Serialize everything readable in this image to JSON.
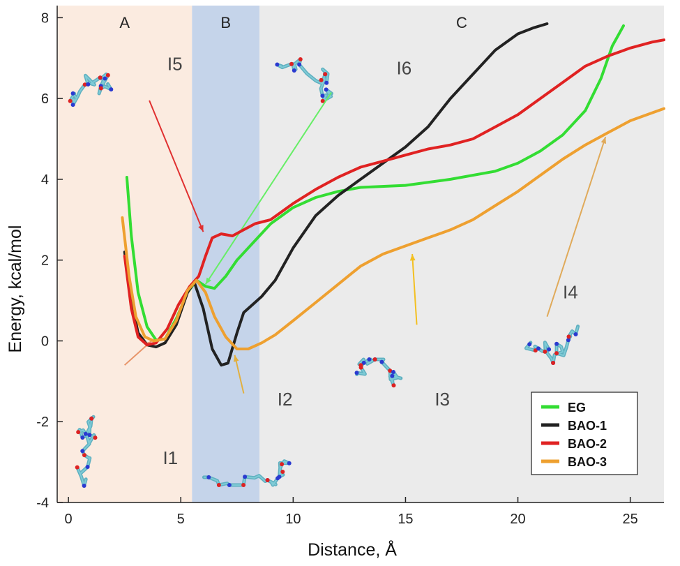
{
  "chart_data": {
    "type": "line",
    "xlabel": "Distance, Å",
    "ylabel": "Energy, kcal/mol",
    "xlim": [
      -0.5,
      26.5
    ],
    "ylim": [
      -4,
      8.3
    ],
    "xticks": [
      0,
      5,
      10,
      15,
      20,
      25
    ],
    "yticks": [
      -4,
      -2,
      0,
      2,
      4,
      6,
      8
    ],
    "regions": [
      {
        "label": "A",
        "from": -0.5,
        "to": 5.5,
        "color": "#fbebe0"
      },
      {
        "label": "B",
        "from": 5.5,
        "to": 8.5,
        "color": "#c5d4ea"
      },
      {
        "label": "C",
        "from": 8.5,
        "to": 26.5,
        "color": "#ebebeb"
      }
    ],
    "series": [
      {
        "name": "EG",
        "color": "#33dd33",
        "points": [
          [
            2.6,
            4.05
          ],
          [
            2.8,
            2.6
          ],
          [
            3.1,
            1.2
          ],
          [
            3.5,
            0.35
          ],
          [
            3.9,
            0.02
          ],
          [
            4.3,
            0.05
          ],
          [
            4.8,
            0.55
          ],
          [
            5.3,
            1.2
          ],
          [
            5.7,
            1.5
          ],
          [
            6.1,
            1.35
          ],
          [
            6.5,
            1.3
          ],
          [
            7.0,
            1.6
          ],
          [
            7.5,
            2.0
          ],
          [
            8.0,
            2.3
          ],
          [
            8.5,
            2.6
          ],
          [
            9,
            2.9
          ],
          [
            10,
            3.3
          ],
          [
            11,
            3.55
          ],
          [
            12,
            3.7
          ],
          [
            13,
            3.8
          ],
          [
            15,
            3.85
          ],
          [
            17,
            4.0
          ],
          [
            19,
            4.2
          ],
          [
            20,
            4.4
          ],
          [
            21,
            4.7
          ],
          [
            22,
            5.1
          ],
          [
            23,
            5.7
          ],
          [
            23.7,
            6.5
          ],
          [
            24.2,
            7.3
          ],
          [
            24.7,
            7.8
          ]
        ]
      },
      {
        "name": "BAO-1",
        "color": "#222222",
        "points": [
          [
            2.5,
            2.2
          ],
          [
            2.8,
            1.0
          ],
          [
            3.1,
            0.2
          ],
          [
            3.5,
            -0.1
          ],
          [
            3.9,
            -0.15
          ],
          [
            4.3,
            -0.05
          ],
          [
            4.8,
            0.4
          ],
          [
            5.3,
            1.2
          ],
          [
            5.6,
            1.45
          ],
          [
            6.0,
            0.8
          ],
          [
            6.4,
            -0.2
          ],
          [
            6.8,
            -0.6
          ],
          [
            7.1,
            -0.55
          ],
          [
            7.5,
            0.2
          ],
          [
            7.8,
            0.7
          ],
          [
            8.2,
            0.9
          ],
          [
            8.6,
            1.1
          ],
          [
            9.2,
            1.5
          ],
          [
            10,
            2.3
          ],
          [
            11,
            3.1
          ],
          [
            12,
            3.6
          ],
          [
            13,
            4.0
          ],
          [
            14,
            4.4
          ],
          [
            15,
            4.8
          ],
          [
            16,
            5.3
          ],
          [
            17,
            6.0
          ],
          [
            18,
            6.6
          ],
          [
            19,
            7.2
          ],
          [
            20,
            7.6
          ],
          [
            20.7,
            7.75
          ],
          [
            21.3,
            7.85
          ]
        ]
      },
      {
        "name": "BAO-2",
        "color": "#e02222",
        "points": [
          [
            2.5,
            2.1
          ],
          [
            2.8,
            0.8
          ],
          [
            3.1,
            0.1
          ],
          [
            3.5,
            -0.1
          ],
          [
            3.9,
            -0.05
          ],
          [
            4.4,
            0.3
          ],
          [
            4.9,
            0.9
          ],
          [
            5.4,
            1.35
          ],
          [
            5.8,
            1.6
          ],
          [
            6.1,
            2.1
          ],
          [
            6.4,
            2.55
          ],
          [
            6.8,
            2.65
          ],
          [
            7.3,
            2.6
          ],
          [
            7.8,
            2.75
          ],
          [
            8.3,
            2.9
          ],
          [
            9,
            3.0
          ],
          [
            10,
            3.4
          ],
          [
            11,
            3.75
          ],
          [
            12,
            4.05
          ],
          [
            13,
            4.3
          ],
          [
            14,
            4.45
          ],
          [
            15,
            4.6
          ],
          [
            16,
            4.75
          ],
          [
            17,
            4.85
          ],
          [
            18,
            5.0
          ],
          [
            19,
            5.3
          ],
          [
            20,
            5.6
          ],
          [
            21,
            6.0
          ],
          [
            22,
            6.4
          ],
          [
            23,
            6.8
          ],
          [
            24,
            7.05
          ],
          [
            25,
            7.25
          ],
          [
            26,
            7.4
          ],
          [
            26.5,
            7.45
          ]
        ]
      },
      {
        "name": "BAO-3",
        "color": "#eea030",
        "points": [
          [
            2.4,
            3.05
          ],
          [
            2.7,
            1.6
          ],
          [
            3.0,
            0.6
          ],
          [
            3.4,
            0.1
          ],
          [
            3.8,
            0.0
          ],
          [
            4.3,
            0.05
          ],
          [
            4.8,
            0.5
          ],
          [
            5.3,
            1.25
          ],
          [
            5.7,
            1.5
          ],
          [
            6.1,
            1.2
          ],
          [
            6.5,
            0.6
          ],
          [
            7.0,
            0.1
          ],
          [
            7.5,
            -0.2
          ],
          [
            8.0,
            -0.2
          ],
          [
            8.6,
            -0.05
          ],
          [
            9.2,
            0.15
          ],
          [
            10,
            0.5
          ],
          [
            11,
            0.95
          ],
          [
            12,
            1.4
          ],
          [
            13,
            1.85
          ],
          [
            14,
            2.15
          ],
          [
            15,
            2.35
          ],
          [
            16,
            2.55
          ],
          [
            17,
            2.75
          ],
          [
            18,
            3.0
          ],
          [
            19,
            3.35
          ],
          [
            20,
            3.7
          ],
          [
            21,
            4.1
          ],
          [
            22,
            4.5
          ],
          [
            23,
            4.85
          ],
          [
            24,
            5.15
          ],
          [
            25,
            5.45
          ],
          [
            26,
            5.65
          ],
          [
            26.5,
            5.75
          ]
        ]
      }
    ],
    "legend": {
      "placement": "bottom-right",
      "entries": [
        "EG",
        "BAO-1",
        "BAO-2",
        "BAO-3"
      ]
    },
    "annotations": [
      {
        "label": "I1",
        "color": "#e8956a",
        "line_from": [
          2.5,
          -0.6
        ],
        "line_to": [
          3.7,
          0.0
        ],
        "text_at": [
          4.2,
          -3.05
        ]
      },
      {
        "label": "I2",
        "color": "#e2b040",
        "line_from": [
          7.8,
          -1.3
        ],
        "line_to": [
          7.4,
          -0.35
        ],
        "text_at": [
          9.3,
          -1.6
        ]
      },
      {
        "label": "I3",
        "color": "#f3c021",
        "line_from": [
          15.5,
          0.4
        ],
        "line_to": [
          15.3,
          2.15
        ],
        "text_at": [
          16.3,
          -1.6
        ]
      },
      {
        "label": "I4",
        "color": "#e0aa5a",
        "line_from": [
          21.3,
          0.6
        ],
        "line_to": [
          23.9,
          5.05
        ],
        "text_at": [
          22.0,
          1.05
        ]
      },
      {
        "label": "I5",
        "color": "#e03030",
        "line_from": [
          3.6,
          5.95
        ],
        "line_to": [
          6.0,
          2.7
        ],
        "text_at": [
          4.4,
          6.7
        ]
      },
      {
        "label": "I6",
        "color": "#66ee66",
        "line_from": [
          11.7,
          6.15
        ],
        "line_to": [
          6.1,
          1.4
        ],
        "text_at": [
          14.6,
          6.6
        ]
      }
    ]
  }
}
